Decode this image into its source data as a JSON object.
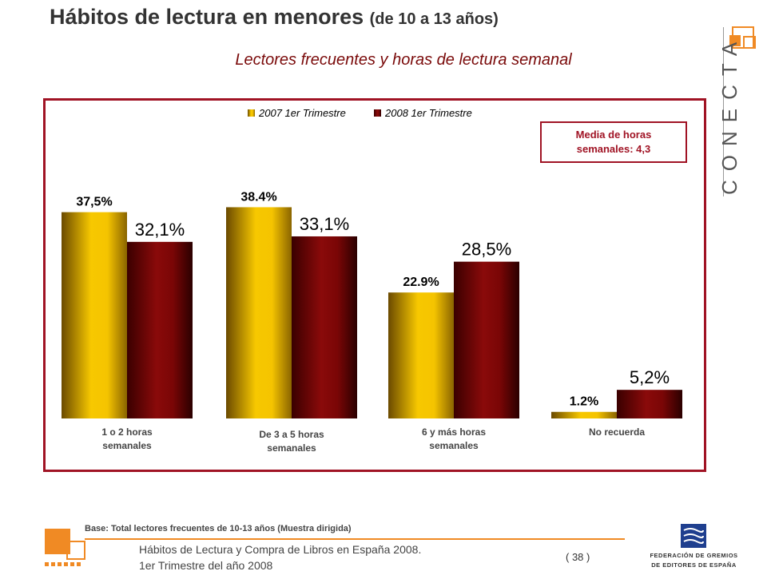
{
  "header": {
    "title_main": "Hábitos de lectura en menores",
    "title_sub": "(de 10 a 13 años)",
    "subtitle": "Lectores frecuentes y horas de lectura semanal",
    "brand": "CONECTA"
  },
  "avg_box": {
    "line1": "Media de horas",
    "line2": "semanales: 4,3"
  },
  "footer": {
    "base": "Base:  Total lectores frecuentes  de 10-13 años (Muestra  dirigida)",
    "line1": "Hábitos de Lectura y Compra de Libros en España 2008.",
    "line2": "1er Trimestre del año 2008",
    "page": "( 38 )",
    "org_line1": "FEDERACIÓN DE GREMIOS",
    "org_line2": "DE EDITORES DE ESPAÑA"
  },
  "colors": {
    "accent": "#a01324",
    "orange": "#f08a24",
    "gold": "#f5c400",
    "maroon": "#7a0606"
  },
  "chart_data": {
    "type": "bar",
    "categories": [
      [
        "1 o 2 horas",
        "semanales"
      ],
      [
        "De 3 a 5 horas",
        "semanales"
      ],
      [
        "6 y más horas",
        "semanales"
      ],
      [
        "No recuerda"
      ]
    ],
    "series": [
      {
        "name": "2007 1er Trimestre",
        "values": [
          37.5,
          38.4,
          22.9,
          1.2
        ],
        "labels": [
          "37,5%",
          "38.4%",
          "22.9%",
          "1.2%"
        ],
        "color": "gold"
      },
      {
        "name": "2008 1er Trimestre",
        "values": [
          32.1,
          33.1,
          28.5,
          5.2
        ],
        "labels": [
          "32,1%",
          "33,1%",
          "28,5%",
          "5,2%"
        ],
        "color": "maroon"
      }
    ],
    "ylim": [
      0,
      45
    ],
    "legend": "top-center",
    "grid": false
  }
}
